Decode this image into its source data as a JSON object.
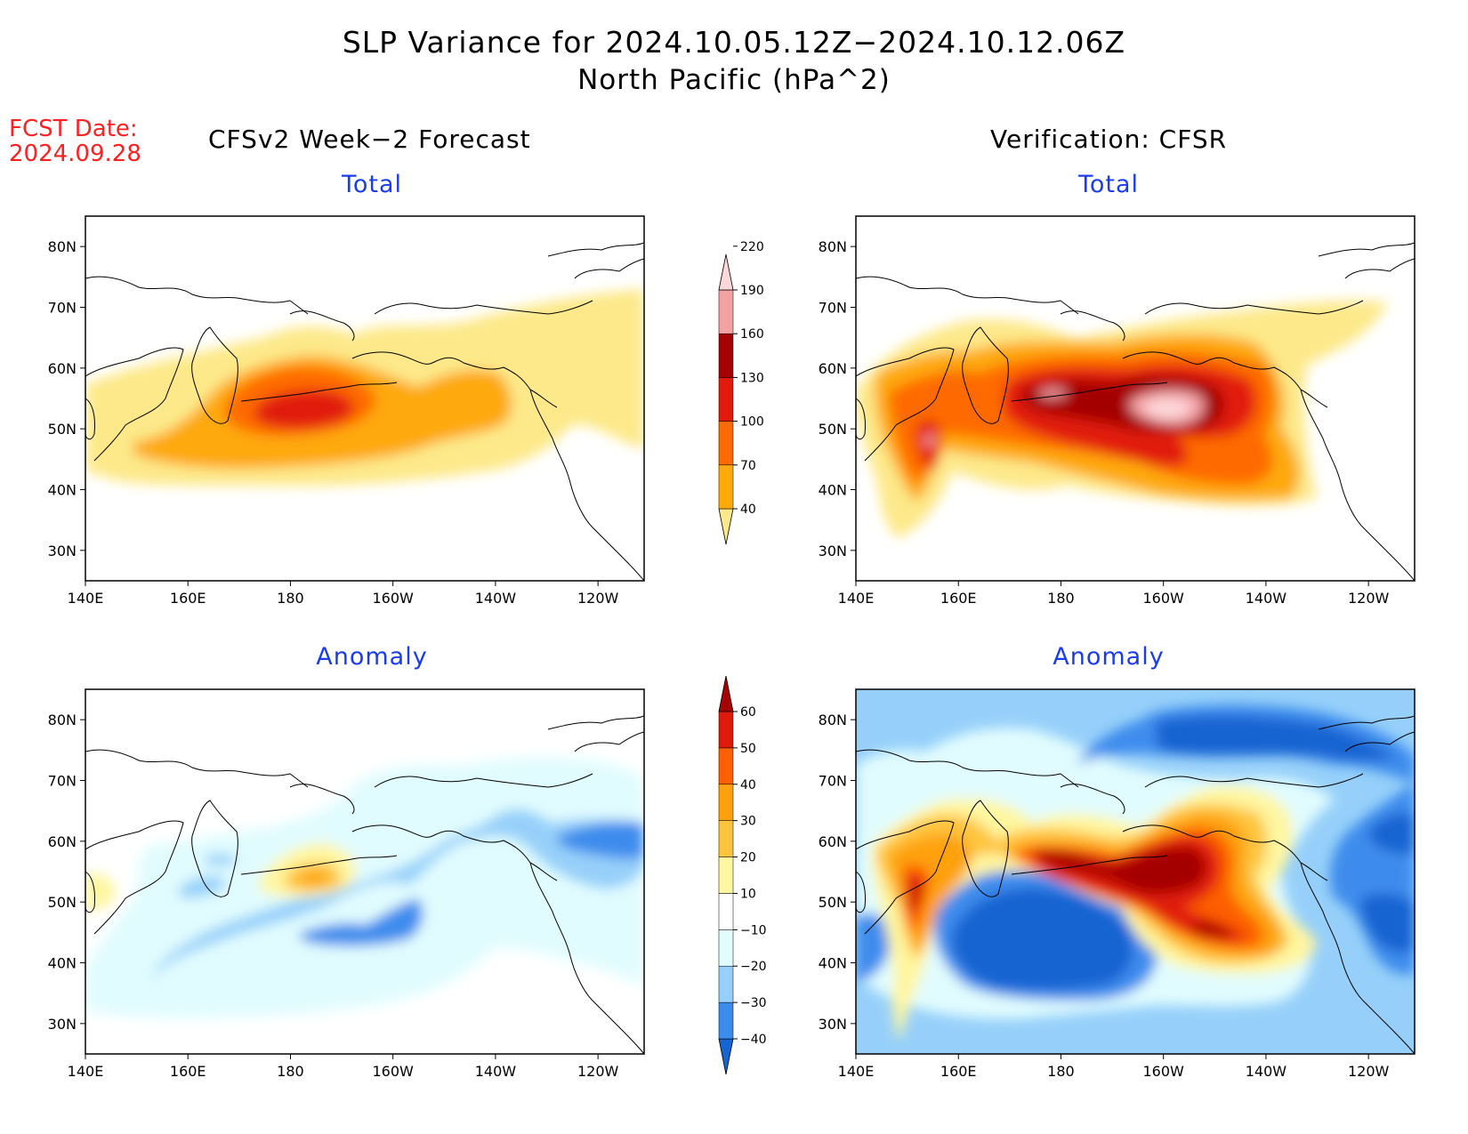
{
  "header": {
    "title": "SLP Variance for 2024.10.05.12Z−2024.10.12.06Z",
    "subtitle": "North Pacific (hPa^2)",
    "fcst_label": "FCST Date:",
    "fcst_date": "2024.09.28"
  },
  "columns": {
    "left_title": "CFSv2 Week−2 Forecast",
    "right_title": "Verification: CFSR"
  },
  "panels": [
    {
      "id": "fcst-total",
      "title": "Total"
    },
    {
      "id": "fcst-anomaly",
      "title": "Anomaly"
    },
    {
      "id": "verif-total",
      "title": "Total"
    },
    {
      "id": "verif-anomaly",
      "title": "Anomaly"
    }
  ],
  "axes": {
    "lat_labels": [
      "80N",
      "70N",
      "60N",
      "50N",
      "40N",
      "30N"
    ],
    "lat_values": [
      80,
      70,
      60,
      50,
      40,
      30
    ],
    "lat_range": [
      25,
      85
    ],
    "lon_labels": [
      "140E",
      "160E",
      "180",
      "160W",
      "140W",
      "120W"
    ],
    "lon_values": [
      140,
      160,
      180,
      200,
      220,
      240
    ],
    "lon_range": [
      140,
      249
    ]
  },
  "colorbars": {
    "total": {
      "levels": [
        "40",
        "70",
        "100",
        "130",
        "160",
        "190",
        "220"
      ],
      "colors": [
        "#fde98a",
        "#fea90a",
        "#fe6a02",
        "#e11a0b",
        "#a50203",
        "#f4a1a4",
        "#fdd8da"
      ]
    },
    "anomaly": {
      "levels": [
        "−40",
        "−30",
        "−20",
        "−10",
        "10",
        "20",
        "30",
        "40",
        "50",
        "60"
      ],
      "colors": [
        "#1464d2",
        "#3c8ced",
        "#96d0fa",
        "#e1fcfe",
        "#ffffff",
        "#fff6a0",
        "#ffc43d",
        "#fea10a",
        "#fd5f03",
        "#e01a0b",
        "#a50203"
      ]
    }
  }
}
